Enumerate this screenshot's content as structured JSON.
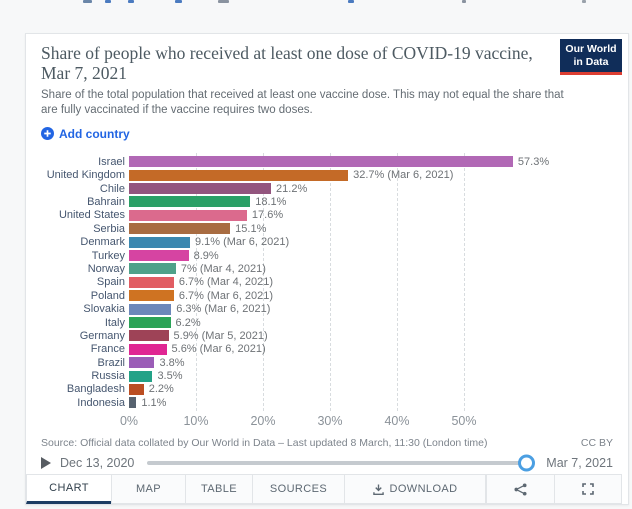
{
  "header": {
    "title": "Share of people who received at least one dose of COVID-19 vaccine, Mar 7, 2021",
    "subtitle": "Share of the total population that received at least one vaccine dose. This may not equal the share that are fully vaccinated if the vaccine requires two doses.",
    "logo_line1": "Our World",
    "logo_line2": "in Data",
    "add_country_label": "Add country"
  },
  "chart_data": {
    "type": "bar",
    "orientation": "horizontal",
    "title": "Share of people who received at least one dose of COVID-19 vaccine, Mar 7, 2021",
    "categories": [
      "Israel",
      "United Kingdom",
      "Chile",
      "Bahrain",
      "United States",
      "Serbia",
      "Denmark",
      "Turkey",
      "Norway",
      "Spain",
      "Poland",
      "Slovakia",
      "Italy",
      "Germany",
      "France",
      "Brazil",
      "Russia",
      "Bangladesh",
      "Indonesia"
    ],
    "values": [
      57.3,
      32.7,
      21.2,
      18.1,
      17.6,
      15.1,
      9.1,
      8.9,
      7,
      6.7,
      6.7,
      6.3,
      6.2,
      5.9,
      5.6,
      3.8,
      3.5,
      2.2,
      1.1
    ],
    "value_labels": [
      "57.3%",
      "32.7% (Mar 6, 2021)",
      "21.2%",
      "18.1%",
      "17.6%",
      "15.1%",
      "9.1% (Mar 6, 2021)",
      "8.9%",
      "7% (Mar 4, 2021)",
      "6.7% (Mar 4, 2021)",
      "6.7% (Mar 6, 2021)",
      "6.3% (Mar 6, 2021)",
      "6.2%",
      "5.9% (Mar 5, 2021)",
      "5.6% (Mar 6, 2021)",
      "3.8%",
      "3.5%",
      "2.2%",
      "1.1%"
    ],
    "bar_colors": [
      "#B168B5",
      "#C46A27",
      "#93557E",
      "#2BA066",
      "#DB6A8D",
      "#A86C42",
      "#3B88B0",
      "#D644A2",
      "#4FA189",
      "#E15D63",
      "#CF7322",
      "#6C87BA",
      "#2BA357",
      "#9E4357",
      "#E02693",
      "#9B5DB7",
      "#23A287",
      "#BB4E22",
      "#57626F"
    ],
    "x_ticks": [
      "0%",
      "10%",
      "20%",
      "30%",
      "40%",
      "50%"
    ],
    "x_tick_values": [
      0,
      10,
      20,
      30,
      40,
      50
    ],
    "xlim": [
      0,
      60
    ],
    "xlabel": "",
    "ylabel": "",
    "grid": "dashed-vertical",
    "legend": "none"
  },
  "footer": {
    "source": "Source: Official data collated by Our World in Data – Last updated 8 March, 11:30 (London time)",
    "license": "CC BY"
  },
  "timeline": {
    "start_date": "Dec 13, 2020",
    "end_date": "Mar 7, 2021"
  },
  "tabs": [
    {
      "label": "CHART",
      "active": true
    },
    {
      "label": "MAP",
      "active": false
    },
    {
      "label": "TABLE",
      "active": false
    },
    {
      "label": "SOURCES",
      "active": false
    },
    {
      "label": "DOWNLOAD",
      "active": false,
      "icon": "download-icon"
    }
  ],
  "colors": {
    "accent_blue": "#2265e3",
    "logo_navy": "#102d59",
    "logo_red": "#dc3e32",
    "active_tab_underline": "#1d3d63",
    "slider_handle_ring": "#4b9fe2"
  }
}
